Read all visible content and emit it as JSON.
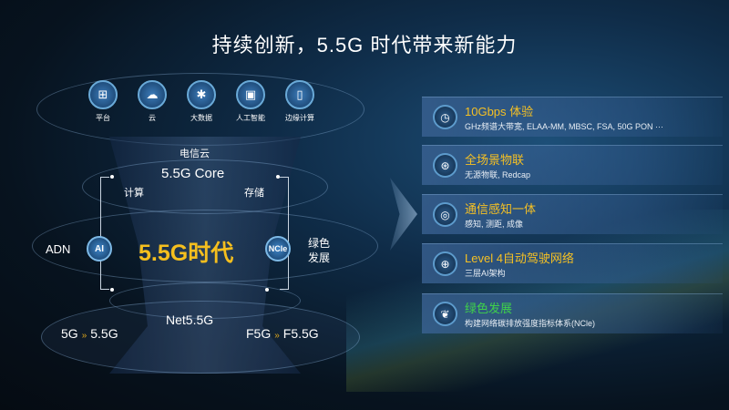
{
  "title": "持续创新，5.5G 时代带来新能力",
  "apps": [
    {
      "label": "平台",
      "icon": "platform-icon",
      "glyph": "⊞"
    },
    {
      "label": "云",
      "icon": "cloud-icon",
      "glyph": "☁"
    },
    {
      "label": "大数据",
      "icon": "big-data-icon",
      "glyph": "✱"
    },
    {
      "label": "人工智能",
      "icon": "ai-chip-icon",
      "glyph": "▣"
    },
    {
      "label": "边缘计算",
      "icon": "edge-computing-icon",
      "glyph": "▯"
    }
  ],
  "diagram": {
    "telecom_cloud": "电信云",
    "core": "5.5G Core",
    "compute": "计算",
    "storage": "存储",
    "era": "5.5G时代",
    "adn": "ADN",
    "ai": "AI",
    "ncle": "NCle",
    "green": "绿色",
    "green2": "发展",
    "net": "Net5.5G",
    "left_from": "5G",
    "left_to": "5.5G",
    "right_from": "F5G",
    "right_to": "F5.5G",
    "chevron": "»"
  },
  "cards": [
    {
      "heading": "10Gbps 体验",
      "desc": "GHz频谱大带宽, ELAA-MM, MBSC, FSA, 50G PON ···",
      "icon": "speedometer-icon",
      "glyph": "◷",
      "color": "#f5c024"
    },
    {
      "heading": "全场景物联",
      "desc": "无源物联, Redcap",
      "icon": "iot-network-icon",
      "glyph": "⊛",
      "color": "#f5c024"
    },
    {
      "heading": "通信感知一体",
      "desc": "感知, 测距, 成像",
      "icon": "sensing-icon",
      "glyph": "◎",
      "color": "#f5c024"
    },
    {
      "heading": "Level 4自动驾驶网络",
      "desc": "三层AI架构",
      "icon": "globe-network-icon",
      "glyph": "⊕",
      "color": "#f5c024"
    },
    {
      "heading": "绿色发展",
      "desc": "构建网络碳排放强度指标体系(NCle)",
      "icon": "leaf-icon",
      "glyph": "❦",
      "color": "#3fd14a"
    }
  ]
}
